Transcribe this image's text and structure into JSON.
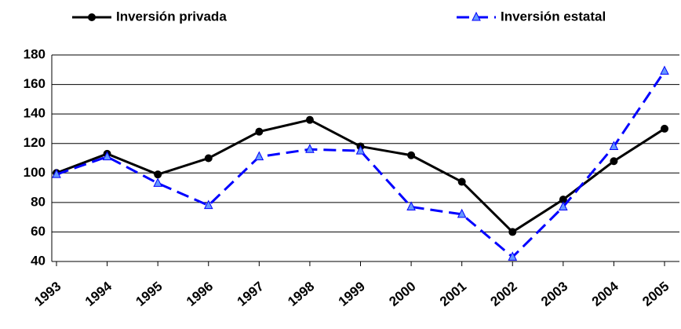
{
  "chart_data": {
    "type": "line",
    "categories": [
      "1993",
      "1994",
      "1995",
      "1996",
      "1997",
      "1998",
      "1999",
      "2000",
      "2001",
      "2002",
      "2003",
      "2004",
      "2005"
    ],
    "series": [
      {
        "name": "Inversión privada",
        "color": "#000000",
        "marker": "circle",
        "dash": "solid",
        "values": [
          100,
          113,
          99,
          110,
          128,
          136,
          118,
          112,
          94,
          60,
          82,
          108,
          130
        ]
      },
      {
        "name": "Inversión estatal",
        "color": "#0000ff",
        "marker": "triangle",
        "dash": "dashed",
        "values": [
          99,
          111,
          93,
          78,
          111,
          116,
          115,
          77,
          72,
          43,
          77,
          118,
          169
        ]
      }
    ],
    "ylim": [
      40,
      180
    ],
    "yticks": [
      40,
      60,
      80,
      100,
      120,
      140,
      160,
      180
    ],
    "grid": true,
    "legend": "top"
  }
}
